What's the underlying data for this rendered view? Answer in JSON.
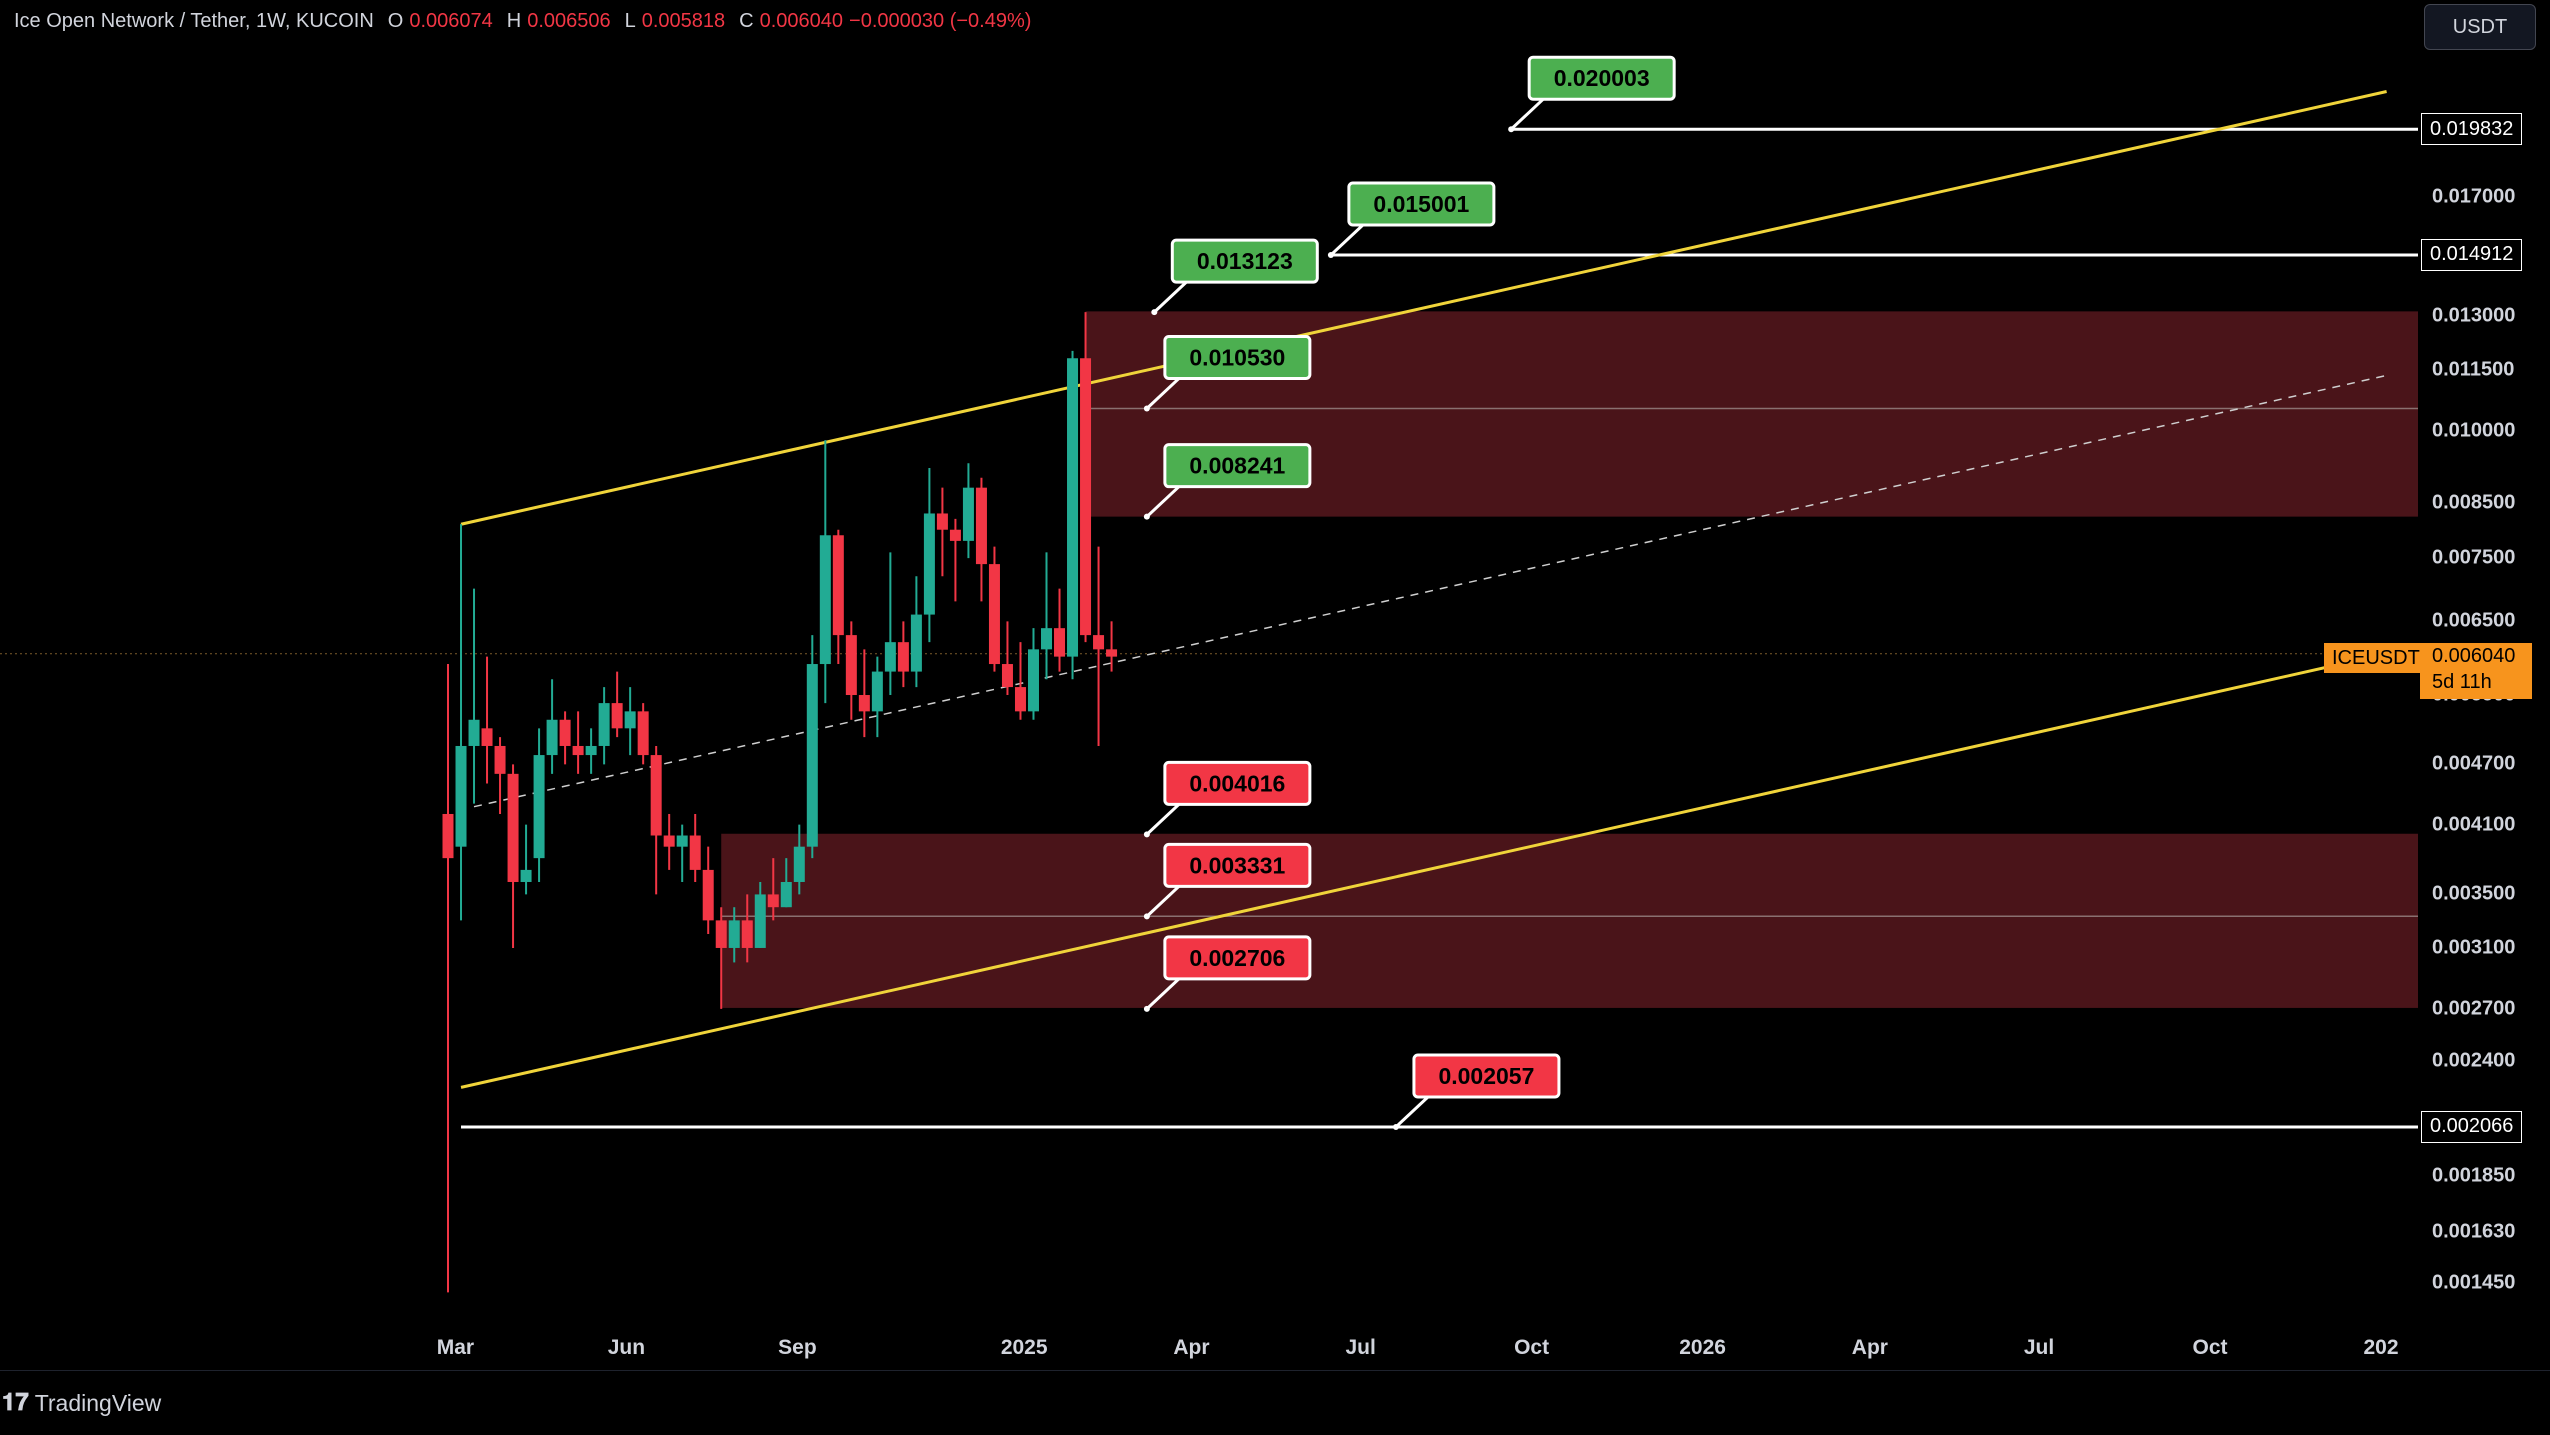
{
  "header": {
    "symbol": "Ice Open Network / Tether, 1W, KUCOIN",
    "open_label": "O",
    "open": "0.006074",
    "high_label": "H",
    "high": "0.006506",
    "low_label": "L",
    "low": "0.005818",
    "close_label": "C",
    "close": "0.006040",
    "change": "−0.000030 (−0.49%)"
  },
  "currency_button": "USDT",
  "brand": "TradingView",
  "price_tag": {
    "ticker": "ICEUSDT",
    "price": "0.006040",
    "countdown": "5d 11h"
  },
  "colors": {
    "up": "#22ab94",
    "down": "#f23645",
    "zone": "#4a1419",
    "channel": "#f0d43a",
    "level": "#ffffff",
    "target_green": "#4caf50",
    "target_red": "#f23645",
    "price_orange": "#f7941d"
  },
  "chart_data": {
    "type": "candlestick",
    "title": "Ice Open Network / Tether, 1W, KUCOIN",
    "y_scale": "log",
    "ylim": [
      0.00138,
      0.0232
    ],
    "xlim": [
      "2024-02-26",
      "2027-01-04"
    ],
    "y_ticks": [
      "0.017000",
      "0.013000",
      "0.011500",
      "0.010000",
      "0.008500",
      "0.007500",
      "0.006500",
      "0.005500",
      "0.004700",
      "0.004100",
      "0.003500",
      "0.003100",
      "0.002700",
      "0.002400",
      "0.001850",
      "0.001630",
      "0.001450"
    ],
    "x_ticks": [
      {
        "label": "Mar",
        "date": "2024-03-01"
      },
      {
        "label": "Jun",
        "date": "2024-06-01"
      },
      {
        "label": "Sep",
        "date": "2024-09-01"
      },
      {
        "label": "2025",
        "date": "2025-01-01"
      },
      {
        "label": "Apr",
        "date": "2025-04-01"
      },
      {
        "label": "Jul",
        "date": "2025-07-01"
      },
      {
        "label": "Oct",
        "date": "2025-10-01"
      },
      {
        "label": "2026",
        "date": "2026-01-01"
      },
      {
        "label": "Apr",
        "date": "2026-04-01"
      },
      {
        "label": "Jul",
        "date": "2026-07-01"
      },
      {
        "label": "Oct",
        "date": "2026-10-01"
      },
      {
        "label": "202",
        "date": "2027-01-01"
      }
    ],
    "candles": [
      {
        "t": "2024-02-26",
        "o": 0.0042,
        "h": 0.0059,
        "l": 0.00142,
        "c": 0.0038
      },
      {
        "t": "2024-03-04",
        "o": 0.0039,
        "h": 0.0081,
        "l": 0.0033,
        "c": 0.0049
      },
      {
        "t": "2024-03-11",
        "o": 0.0049,
        "h": 0.007,
        "l": 0.0043,
        "c": 0.0052
      },
      {
        "t": "2024-03-18",
        "o": 0.0051,
        "h": 0.006,
        "l": 0.0045,
        "c": 0.0049
      },
      {
        "t": "2024-03-25",
        "o": 0.0049,
        "h": 0.005,
        "l": 0.0042,
        "c": 0.0046
      },
      {
        "t": "2024-04-01",
        "o": 0.0046,
        "h": 0.0047,
        "l": 0.0031,
        "c": 0.0036
      },
      {
        "t": "2024-04-08",
        "o": 0.0036,
        "h": 0.0041,
        "l": 0.0035,
        "c": 0.0037
      },
      {
        "t": "2024-04-15",
        "o": 0.0038,
        "h": 0.0051,
        "l": 0.0036,
        "c": 0.0048
      },
      {
        "t": "2024-04-22",
        "o": 0.0048,
        "h": 0.0057,
        "l": 0.0046,
        "c": 0.0052
      },
      {
        "t": "2024-04-29",
        "o": 0.0052,
        "h": 0.0053,
        "l": 0.0047,
        "c": 0.0049
      },
      {
        "t": "2024-05-06",
        "o": 0.0049,
        "h": 0.0053,
        "l": 0.0046,
        "c": 0.0048
      },
      {
        "t": "2024-05-13",
        "o": 0.0048,
        "h": 0.0051,
        "l": 0.0046,
        "c": 0.0049
      },
      {
        "t": "2024-05-20",
        "o": 0.0049,
        "h": 0.0056,
        "l": 0.0047,
        "c": 0.0054
      },
      {
        "t": "2024-05-27",
        "o": 0.0054,
        "h": 0.0058,
        "l": 0.005,
        "c": 0.0051
      },
      {
        "t": "2024-06-03",
        "o": 0.0051,
        "h": 0.0056,
        "l": 0.0048,
        "c": 0.0053
      },
      {
        "t": "2024-06-10",
        "o": 0.0053,
        "h": 0.0054,
        "l": 0.0047,
        "c": 0.0048
      },
      {
        "t": "2024-06-17",
        "o": 0.0048,
        "h": 0.0049,
        "l": 0.0035,
        "c": 0.004
      },
      {
        "t": "2024-06-24",
        "o": 0.004,
        "h": 0.0042,
        "l": 0.0037,
        "c": 0.0039
      },
      {
        "t": "2024-07-01",
        "o": 0.0039,
        "h": 0.0041,
        "l": 0.0036,
        "c": 0.004
      },
      {
        "t": "2024-07-08",
        "o": 0.004,
        "h": 0.0042,
        "l": 0.0036,
        "c": 0.0037
      },
      {
        "t": "2024-07-15",
        "o": 0.0037,
        "h": 0.0039,
        "l": 0.0032,
        "c": 0.0033
      },
      {
        "t": "2024-07-22",
        "o": 0.0033,
        "h": 0.0034,
        "l": 0.0027,
        "c": 0.0031
      },
      {
        "t": "2024-07-29",
        "o": 0.0031,
        "h": 0.0034,
        "l": 0.003,
        "c": 0.0033
      },
      {
        "t": "2024-08-05",
        "o": 0.0033,
        "h": 0.0035,
        "l": 0.003,
        "c": 0.0031
      },
      {
        "t": "2024-08-12",
        "o": 0.0031,
        "h": 0.0036,
        "l": 0.0031,
        "c": 0.0035
      },
      {
        "t": "2024-08-19",
        "o": 0.0035,
        "h": 0.0038,
        "l": 0.0033,
        "c": 0.0034
      },
      {
        "t": "2024-08-26",
        "o": 0.0034,
        "h": 0.0038,
        "l": 0.0034,
        "c": 0.0036
      },
      {
        "t": "2024-09-02",
        "o": 0.0036,
        "h": 0.0041,
        "l": 0.0035,
        "c": 0.0039
      },
      {
        "t": "2024-09-09",
        "o": 0.0039,
        "h": 0.0063,
        "l": 0.0038,
        "c": 0.0059
      },
      {
        "t": "2024-09-16",
        "o": 0.0059,
        "h": 0.0098,
        "l": 0.0054,
        "c": 0.0079
      },
      {
        "t": "2024-09-23",
        "o": 0.0079,
        "h": 0.008,
        "l": 0.0059,
        "c": 0.0063
      },
      {
        "t": "2024-09-30",
        "o": 0.0063,
        "h": 0.0065,
        "l": 0.0052,
        "c": 0.0055
      },
      {
        "t": "2024-10-07",
        "o": 0.0055,
        "h": 0.0061,
        "l": 0.005,
        "c": 0.0053
      },
      {
        "t": "2024-10-14",
        "o": 0.0053,
        "h": 0.006,
        "l": 0.005,
        "c": 0.0058
      },
      {
        "t": "2024-10-21",
        "o": 0.0058,
        "h": 0.0076,
        "l": 0.0055,
        "c": 0.0062
      },
      {
        "t": "2024-10-28",
        "o": 0.0062,
        "h": 0.0065,
        "l": 0.0056,
        "c": 0.0058
      },
      {
        "t": "2024-11-04",
        "o": 0.0058,
        "h": 0.0072,
        "l": 0.0056,
        "c": 0.0066
      },
      {
        "t": "2024-11-11",
        "o": 0.0066,
        "h": 0.0092,
        "l": 0.0062,
        "c": 0.0083
      },
      {
        "t": "2024-11-18",
        "o": 0.0083,
        "h": 0.0088,
        "l": 0.0072,
        "c": 0.008
      },
      {
        "t": "2024-11-25",
        "o": 0.008,
        "h": 0.0082,
        "l": 0.0068,
        "c": 0.0078
      },
      {
        "t": "2024-12-02",
        "o": 0.0078,
        "h": 0.0093,
        "l": 0.0075,
        "c": 0.0088
      },
      {
        "t": "2024-12-09",
        "o": 0.0088,
        "h": 0.009,
        "l": 0.0068,
        "c": 0.0074
      },
      {
        "t": "2024-12-16",
        "o": 0.0074,
        "h": 0.0077,
        "l": 0.0058,
        "c": 0.0059
      },
      {
        "t": "2024-12-23",
        "o": 0.0059,
        "h": 0.0065,
        "l": 0.0055,
        "c": 0.0056
      },
      {
        "t": "2024-12-30",
        "o": 0.0056,
        "h": 0.0062,
        "l": 0.0052,
        "c": 0.0053
      },
      {
        "t": "2025-01-06",
        "o": 0.0053,
        "h": 0.0064,
        "l": 0.0052,
        "c": 0.0061
      },
      {
        "t": "2025-01-13",
        "o": 0.0061,
        "h": 0.0076,
        "l": 0.0057,
        "c": 0.0064
      },
      {
        "t": "2025-01-20",
        "o": 0.0064,
        "h": 0.007,
        "l": 0.0058,
        "c": 0.006
      },
      {
        "t": "2025-01-27",
        "o": 0.006,
        "h": 0.012,
        "l": 0.0057,
        "c": 0.0118
      },
      {
        "t": "2025-02-03",
        "o": 0.0118,
        "h": 0.0131,
        "l": 0.0062,
        "c": 0.0063
      },
      {
        "t": "2025-02-10",
        "o": 0.0063,
        "h": 0.0077,
        "l": 0.0049,
        "c": 0.0061
      },
      {
        "t": "2025-02-17",
        "o": 0.0061,
        "h": 0.0065,
        "l": 0.0058,
        "c": 0.006
      }
    ],
    "zones": [
      {
        "name": "resistance-zone",
        "from": 0.008241,
        "to": 0.013123,
        "mid": 0.01053,
        "start": "2025-02-03"
      },
      {
        "name": "support-zone",
        "from": 0.002706,
        "to": 0.004016,
        "mid": 0.003331,
        "start": "2024-07-22"
      }
    ],
    "channel": {
      "upper": [
        {
          "t": "2024-03-04",
          "v": 0.0081
        },
        {
          "t": "2027-01-04",
          "v": 0.0216
        }
      ],
      "lower": [
        {
          "t": "2024-03-04",
          "v": 0.00226
        },
        {
          "t": "2026-12-28",
          "v": 0.006
        }
      ],
      "middle": [
        {
          "t": "2024-03-11",
          "v": 0.00427
        },
        {
          "t": "2027-01-04",
          "v": 0.01135
        }
      ]
    },
    "levels": [
      {
        "name": "level-0.019832",
        "value": 0.019832,
        "label": "0.019832",
        "start": "2025-09-20"
      },
      {
        "name": "level-0.014912",
        "value": 0.014912,
        "label": "0.014912",
        "start": "2025-06-15"
      },
      {
        "name": "level-0.002066",
        "value": 0.002066,
        "label": "0.002066",
        "start": "2024-03-04"
      }
    ],
    "targets": [
      {
        "label": "0.020003",
        "value": 0.020003,
        "color": "green",
        "anchor_t": "2025-09-20",
        "anchor_v": 0.019832
      },
      {
        "label": "0.015001",
        "value": 0.015001,
        "color": "green",
        "anchor_t": "2025-06-15",
        "anchor_v": 0.014912
      },
      {
        "label": "0.013123",
        "value": 0.013123,
        "color": "green",
        "anchor_t": "2025-03-12",
        "anchor_v": 0.0131
      },
      {
        "label": "0.010530",
        "value": 0.01053,
        "color": "green",
        "anchor_t": "2025-03-08",
        "anchor_v": 0.01053
      },
      {
        "label": "0.008241",
        "value": 0.008241,
        "color": "green",
        "anchor_t": "2025-03-08",
        "anchor_v": 0.00824
      },
      {
        "label": "0.004016",
        "value": 0.004016,
        "color": "red",
        "anchor_t": "2025-03-08",
        "anchor_v": 0.00401
      },
      {
        "label": "0.003331",
        "value": 0.003331,
        "color": "red",
        "anchor_t": "2025-03-08",
        "anchor_v": 0.00333
      },
      {
        "label": "0.002706",
        "value": 0.002706,
        "color": "red",
        "anchor_t": "2025-03-08",
        "anchor_v": 0.0027
      },
      {
        "label": "0.002057",
        "value": 0.002057,
        "color": "red",
        "anchor_t": "2025-07-20",
        "anchor_v": 0.002066
      }
    ],
    "last_price": 0.00604
  }
}
